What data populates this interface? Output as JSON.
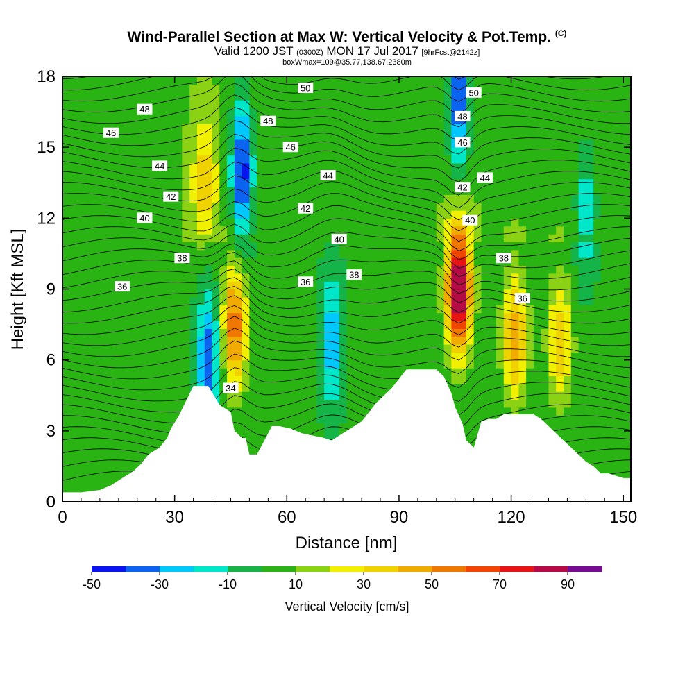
{
  "title": {
    "main": "Wind-Parallel Section at Max W: Vertical Velocity & Pot.Temp.",
    "main_mark": "(C)",
    "sub_prefix": "Valid 1200 JST",
    "sub_utc": "(0300Z)",
    "sub_date": "MON 17 Jul 2017",
    "sub_fcst": "[9hrFcst@2142z]",
    "box_info": "boxWmax=109@35.77,138.67,2380m"
  },
  "chart_data": {
    "type": "heatmap",
    "xlabel": "Distance [nm]",
    "ylabel": "Height [Kft MSL]",
    "xlim": [
      0,
      152
    ],
    "ylim": [
      0,
      18
    ],
    "x_ticks": [
      "0",
      "30",
      "60",
      "90",
      "120",
      "150"
    ],
    "y_ticks": [
      "0",
      "3",
      "6",
      "9",
      "12",
      "15",
      "18"
    ],
    "x_tick_values": [
      0,
      30,
      60,
      90,
      120,
      150
    ],
    "y_tick_values": [
      0,
      3,
      6,
      9,
      12,
      15,
      18
    ],
    "colorbar": {
      "title": "Vertical Velocity [cm/s]",
      "levels": [
        -50,
        -40,
        -30,
        -20,
        -10,
        0,
        10,
        20,
        30,
        40,
        50,
        60,
        70,
        80,
        90,
        100
      ],
      "labels": [
        "-50",
        "-30",
        "-10",
        "10",
        "30",
        "50",
        "70",
        "90"
      ],
      "colors": [
        "#0a14f0",
        "#0a64f0",
        "#00c8ff",
        "#00e6c8",
        "#14b448",
        "#2ab414",
        "#8cd214",
        "#f0f000",
        "#f0d200",
        "#f0aa00",
        "#f07800",
        "#f04600",
        "#e61414",
        "#b40a46",
        "#780a96"
      ]
    },
    "updraft_cores": [
      {
        "x": 46,
        "y": 7.5,
        "max": 55
      },
      {
        "x": 106,
        "y": 9.0,
        "max": 95
      },
      {
        "x": 121,
        "y": 7.0,
        "max": 45
      },
      {
        "x": 133,
        "y": 6.8,
        "max": 35
      },
      {
        "x": 38,
        "y": 13.5,
        "max": 30
      }
    ],
    "downdraft_cores": [
      {
        "x": 48,
        "y": 14.0,
        "min": -55
      },
      {
        "x": 106,
        "y": 17.0,
        "min": -50
      },
      {
        "x": 72,
        "y": 6.8,
        "min": -30
      },
      {
        "x": 39,
        "y": 6.0,
        "min": -40
      },
      {
        "x": 140,
        "y": 12.5,
        "min": -25
      }
    ],
    "potential_temperature": {
      "units": "C",
      "contour_interval": 1,
      "labels": [
        {
          "text": "50",
          "x": 65,
          "y": 17.5
        },
        {
          "text": "50",
          "x": 110,
          "y": 17.3
        },
        {
          "text": "48",
          "x": 22,
          "y": 16.6
        },
        {
          "text": "48",
          "x": 55,
          "y": 16.1
        },
        {
          "text": "48",
          "x": 107,
          "y": 16.3
        },
        {
          "text": "46",
          "x": 13,
          "y": 15.6
        },
        {
          "text": "46",
          "x": 61,
          "y": 15.0
        },
        {
          "text": "46",
          "x": 107,
          "y": 15.2
        },
        {
          "text": "44",
          "x": 26,
          "y": 14.2
        },
        {
          "text": "44",
          "x": 71,
          "y": 13.8
        },
        {
          "text": "44",
          "x": 113,
          "y": 13.7
        },
        {
          "text": "42",
          "x": 29,
          "y": 12.9
        },
        {
          "text": "42",
          "x": 65,
          "y": 12.4
        },
        {
          "text": "42",
          "x": 107,
          "y": 13.3
        },
        {
          "text": "40",
          "x": 22,
          "y": 12.0
        },
        {
          "text": "40",
          "x": 74,
          "y": 11.1
        },
        {
          "text": "40",
          "x": 109,
          "y": 11.9
        },
        {
          "text": "38",
          "x": 32,
          "y": 10.3
        },
        {
          "text": "38",
          "x": 78,
          "y": 9.6
        },
        {
          "text": "38",
          "x": 118,
          "y": 10.3
        },
        {
          "text": "36",
          "x": 16,
          "y": 9.1
        },
        {
          "text": "36",
          "x": 65,
          "y": 9.3
        },
        {
          "text": "36",
          "x": 123,
          "y": 8.6
        },
        {
          "text": "34",
          "x": 45,
          "y": 4.8
        }
      ]
    },
    "terrain_kft": {
      "x": [
        0,
        5,
        10,
        13,
        16,
        19,
        21,
        23,
        26,
        28,
        29,
        31,
        35,
        39,
        42,
        45,
        46,
        48,
        49,
        50,
        52,
        54,
        56,
        58,
        61,
        64,
        67,
        70,
        72,
        74,
        77,
        80,
        82,
        84,
        86,
        88,
        90,
        92,
        94,
        96,
        100,
        102,
        104,
        105,
        107,
        108,
        110,
        112,
        114,
        116,
        118,
        120,
        122,
        124,
        126,
        128,
        130,
        132,
        134,
        136,
        138,
        140,
        142,
        144,
        146,
        148,
        150,
        152
      ],
      "y": [
        0.4,
        0.4,
        0.5,
        0.7,
        1.0,
        1.3,
        1.6,
        2.0,
        2.3,
        2.7,
        3.1,
        3.6,
        4.9,
        4.9,
        4.1,
        3.8,
        3.0,
        2.7,
        2.7,
        2.0,
        2.0,
        2.6,
        3.2,
        3.2,
        3.1,
        2.9,
        2.8,
        2.7,
        2.6,
        2.8,
        3.1,
        3.4,
        3.8,
        4.2,
        4.5,
        4.8,
        5.2,
        5.6,
        5.6,
        5.6,
        5.6,
        5.3,
        4.6,
        4.0,
        3.3,
        2.6,
        2.3,
        3.4,
        3.5,
        3.5,
        3.7,
        3.7,
        3.7,
        3.7,
        3.7,
        3.5,
        3.2,
        2.9,
        2.6,
        2.3,
        2.0,
        1.7,
        1.5,
        1.2,
        1.2,
        1.1,
        1.0,
        1.0
      ]
    }
  }
}
